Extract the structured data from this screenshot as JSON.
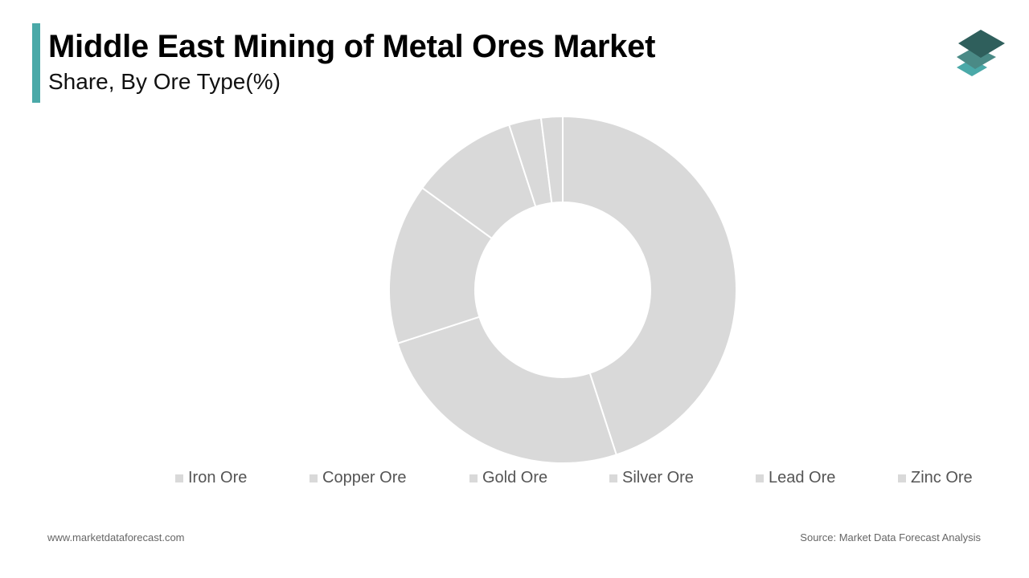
{
  "header": {
    "title": "Middle East Mining of Metal Ores Market",
    "subtitle": "Share, By Ore Type(%)"
  },
  "colors": {
    "accent": "#4aa9a8",
    "slice": "#d9d9d9",
    "slice_border": "#ffffff",
    "logo_dark": "#2f5f5c",
    "logo_mid": "#4a8a86",
    "logo_light": "#4aa9a8"
  },
  "chart_data": {
    "type": "pie",
    "donut": true,
    "categories": [
      "Iron Ore",
      "Copper Ore",
      "Gold Ore",
      "Silver Ore",
      "Lead Ore",
      "Zinc Ore"
    ],
    "values": [
      45,
      25,
      15,
      10,
      3,
      2
    ],
    "legend_position": "bottom"
  },
  "footer": {
    "website": "www.marketdataforecast.com",
    "source": "Source: Market Data Forecast Analysis"
  }
}
